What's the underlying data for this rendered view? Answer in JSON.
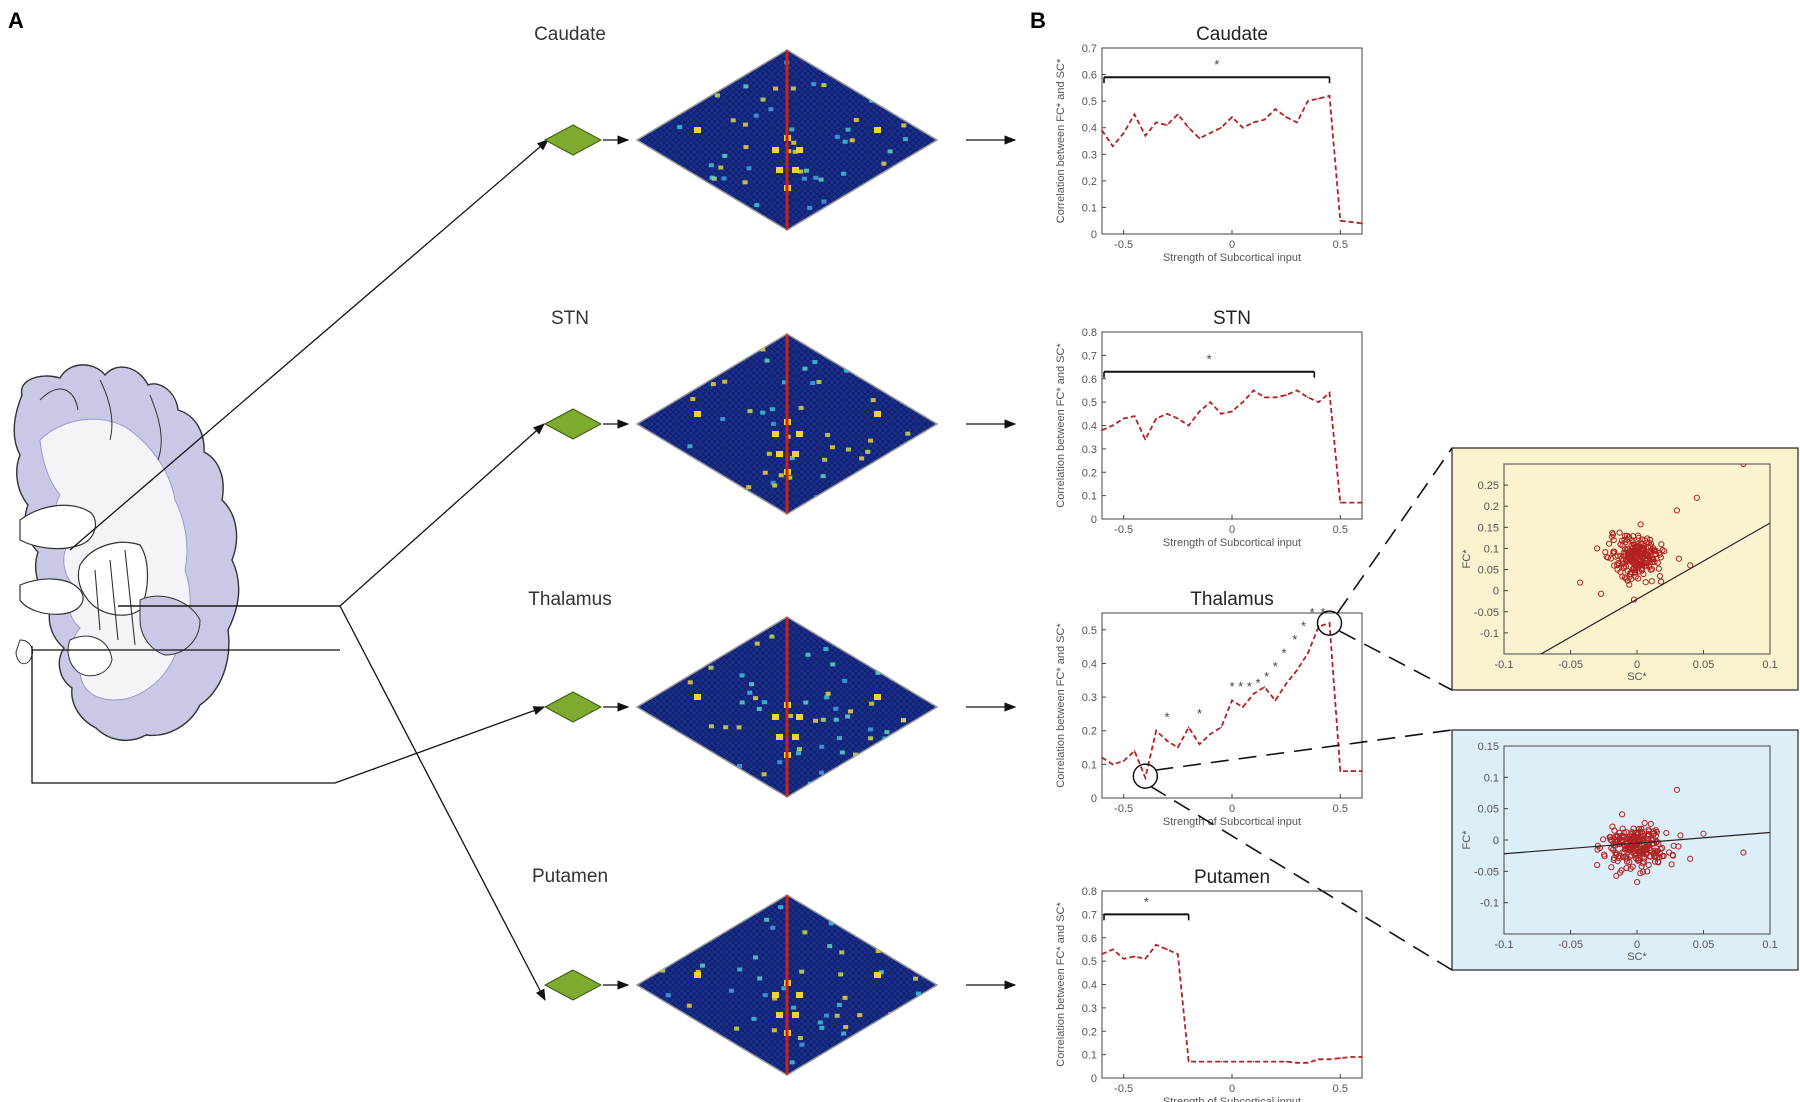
{
  "panel_labels": {
    "a": "A",
    "b": "B"
  },
  "regions": [
    "Caudate",
    "STN",
    "Thalamus",
    "Putamen"
  ],
  "colors": {
    "curve": "#b22222",
    "brain_fill": "#c9c8e6",
    "white_matter": "#f4f4f8",
    "diamond_green": "#7cab2f",
    "matrix_bg": "#1a2e8c",
    "scatter_point": "#b22222",
    "yellow_box": "#fbf3cf",
    "blue_box": "#dceef8"
  },
  "chart_data": [
    {
      "type": "line",
      "title": "Caudate",
      "xlabel": "Strength of Subcortical input",
      "ylabel": "Correlation between FC* and SC*",
      "xlim": [
        -0.6,
        0.6
      ],
      "ylim": [
        0,
        0.7
      ],
      "xticks": [
        "-0.5",
        "0",
        "0.5"
      ],
      "yticks": [
        "0",
        "0.1",
        "0.2",
        "0.3",
        "0.4",
        "0.5",
        "0.6",
        "0.7"
      ],
      "x": [
        -0.6,
        -0.55,
        -0.5,
        -0.45,
        -0.4,
        -0.35,
        -0.3,
        -0.25,
        -0.2,
        -0.15,
        -0.1,
        -0.05,
        0,
        0.05,
        0.1,
        0.15,
        0.2,
        0.25,
        0.3,
        0.35,
        0.4,
        0.45,
        0.5,
        0.55,
        0.6
      ],
      "values": [
        0.39,
        0.33,
        0.38,
        0.45,
        0.37,
        0.42,
        0.41,
        0.45,
        0.4,
        0.36,
        0.38,
        0.4,
        0.44,
        0.4,
        0.42,
        0.43,
        0.47,
        0.44,
        0.42,
        0.5,
        0.51,
        0.52,
        0.05,
        0.045,
        0.04
      ],
      "bracket": {
        "x_start": -0.6,
        "x_end": 0.45,
        "y": 0.59,
        "label": "*"
      },
      "stars": []
    },
    {
      "type": "line",
      "title": "STN",
      "xlabel": "Strength of Subcortical input",
      "ylabel": "Correlation between FC* and SC*",
      "xlim": [
        -0.6,
        0.6
      ],
      "ylim": [
        0,
        0.8
      ],
      "xticks": [
        "-0.5",
        "0",
        "0.5"
      ],
      "yticks": [
        "0",
        "0.1",
        "0.2",
        "0.3",
        "0.4",
        "0.5",
        "0.6",
        "0.7",
        "0.8"
      ],
      "x": [
        -0.6,
        -0.55,
        -0.5,
        -0.45,
        -0.4,
        -0.35,
        -0.3,
        -0.25,
        -0.2,
        -0.15,
        -0.1,
        -0.05,
        0,
        0.05,
        0.1,
        0.15,
        0.2,
        0.25,
        0.3,
        0.35,
        0.4,
        0.45,
        0.5,
        0.55,
        0.6
      ],
      "values": [
        0.38,
        0.4,
        0.43,
        0.44,
        0.34,
        0.43,
        0.45,
        0.43,
        0.4,
        0.46,
        0.5,
        0.45,
        0.46,
        0.5,
        0.55,
        0.52,
        0.52,
        0.53,
        0.55,
        0.52,
        0.5,
        0.54,
        0.07,
        0.07,
        0.07
      ],
      "bracket": {
        "x_start": -0.6,
        "x_end": 0.38,
        "y": 0.63,
        "label": "*"
      },
      "stars": []
    },
    {
      "type": "line",
      "title": "Thalamus",
      "xlabel": "Strength of Subcortical input",
      "ylabel": "Correlation between FC* and SC*",
      "xlim": [
        -0.6,
        0.6
      ],
      "ylim": [
        0,
        0.55
      ],
      "xticks": [
        "-0.5",
        "0",
        "0.5"
      ],
      "yticks": [
        "0",
        "0.1",
        "0.2",
        "0.3",
        "0.4",
        "0.5"
      ],
      "x": [
        -0.6,
        -0.55,
        -0.5,
        -0.45,
        -0.4,
        -0.35,
        -0.3,
        -0.25,
        -0.2,
        -0.15,
        -0.1,
        -0.05,
        0,
        0.05,
        0.1,
        0.15,
        0.2,
        0.25,
        0.3,
        0.35,
        0.4,
        0.45,
        0.5,
        0.55,
        0.6
      ],
      "values": [
        0.12,
        0.1,
        0.11,
        0.14,
        0.06,
        0.2,
        0.17,
        0.15,
        0.21,
        0.16,
        0.19,
        0.21,
        0.29,
        0.27,
        0.31,
        0.33,
        0.29,
        0.34,
        0.38,
        0.43,
        0.51,
        0.52,
        0.08,
        0.08,
        0.08
      ],
      "bracket": null,
      "stars": [
        {
          "x": -0.3,
          "y": 0.24,
          "label": "*"
        },
        {
          "x": -0.15,
          "y": 0.25,
          "label": "*"
        },
        {
          "x": 0.0,
          "y": 0.33,
          "label": "*"
        },
        {
          "x": 0.04,
          "y": 0.33,
          "label": "*"
        },
        {
          "x": 0.08,
          "y": 0.33,
          "label": "*"
        },
        {
          "x": 0.12,
          "y": 0.34,
          "label": "*"
        },
        {
          "x": 0.16,
          "y": 0.36,
          "label": "*"
        },
        {
          "x": 0.2,
          "y": 0.39,
          "label": "*"
        },
        {
          "x": 0.24,
          "y": 0.43,
          "label": "*"
        },
        {
          "x": 0.29,
          "y": 0.47,
          "label": "*"
        },
        {
          "x": 0.33,
          "y": 0.51,
          "label": "*"
        },
        {
          "x": 0.37,
          "y": 0.55,
          "label": "*"
        },
        {
          "x": 0.42,
          "y": 0.55,
          "label": "*"
        }
      ]
    },
    {
      "type": "line",
      "title": "Putamen",
      "xlabel": "Strength of Subcortical input",
      "ylabel": "Correlation between FC* and SC*",
      "xlim": [
        -0.6,
        0.6
      ],
      "ylim": [
        0,
        0.8
      ],
      "xticks": [
        "-0.5",
        "0",
        "0.5"
      ],
      "yticks": [
        "0",
        "0.1",
        "0.2",
        "0.3",
        "0.4",
        "0.5",
        "0.6",
        "0.7",
        "0.8"
      ],
      "x": [
        -0.6,
        -0.55,
        -0.5,
        -0.45,
        -0.4,
        -0.35,
        -0.3,
        -0.25,
        -0.2,
        -0.15,
        -0.1,
        -0.05,
        0,
        0.05,
        0.1,
        0.15,
        0.2,
        0.25,
        0.3,
        0.35,
        0.4,
        0.45,
        0.5,
        0.55,
        0.6
      ],
      "values": [
        0.53,
        0.55,
        0.51,
        0.52,
        0.51,
        0.57,
        0.55,
        0.53,
        0.07,
        0.07,
        0.07,
        0.07,
        0.07,
        0.07,
        0.07,
        0.07,
        0.07,
        0.07,
        0.065,
        0.065,
        0.08,
        0.08,
        0.085,
        0.09,
        0.09
      ],
      "bracket": {
        "x_start": -0.6,
        "x_end": -0.2,
        "y": 0.7,
        "label": "*"
      },
      "stars": []
    },
    {
      "type": "scatter",
      "title": "",
      "xlabel": "SC*",
      "ylabel": "FC*",
      "xlim": [
        -0.1,
        0.1
      ],
      "ylim": [
        -0.15,
        0.3
      ],
      "xticks": [
        "-0.1",
        "-0.05",
        "0",
        "0.05",
        "0.1"
      ],
      "yticks": [
        "-0.1",
        "-0.05",
        "0",
        "0.05",
        "0.1",
        "0.15",
        "0.2",
        "0.25"
      ],
      "fit_line": [
        [
          -0.1,
          -0.2
        ],
        [
          0.1,
          0.16
        ]
      ],
      "center": [
        0.0,
        0.08
      ],
      "spread": [
        0.01,
        0.025
      ],
      "count": 220,
      "outliers": [
        [
          0.08,
          0.3
        ],
        [
          0.045,
          0.22
        ],
        [
          0.03,
          0.19
        ],
        [
          -0.03,
          0.1
        ],
        [
          0.04,
          0.06
        ]
      ]
    },
    {
      "type": "scatter",
      "title": "",
      "xlabel": "SC*",
      "ylabel": "FC*",
      "xlim": [
        -0.1,
        0.1
      ],
      "ylim": [
        -0.15,
        0.15
      ],
      "xticks": [
        "-0.1",
        "-0.05",
        "0",
        "0.05",
        "0.1"
      ],
      "yticks": [
        "-0.1",
        "-0.05",
        "0",
        "0.05",
        "0.1",
        "0.15"
      ],
      "fit_line": [
        [
          -0.1,
          -0.022
        ],
        [
          0.1,
          0.012
        ]
      ],
      "center": [
        0.0,
        -0.01
      ],
      "spread": [
        0.012,
        0.018
      ],
      "count": 230,
      "outliers": [
        [
          0.03,
          0.08
        ],
        [
          0.08,
          -0.02
        ],
        [
          0.04,
          -0.03
        ],
        [
          -0.03,
          -0.04
        ],
        [
          0.05,
          0.01
        ]
      ]
    }
  ]
}
